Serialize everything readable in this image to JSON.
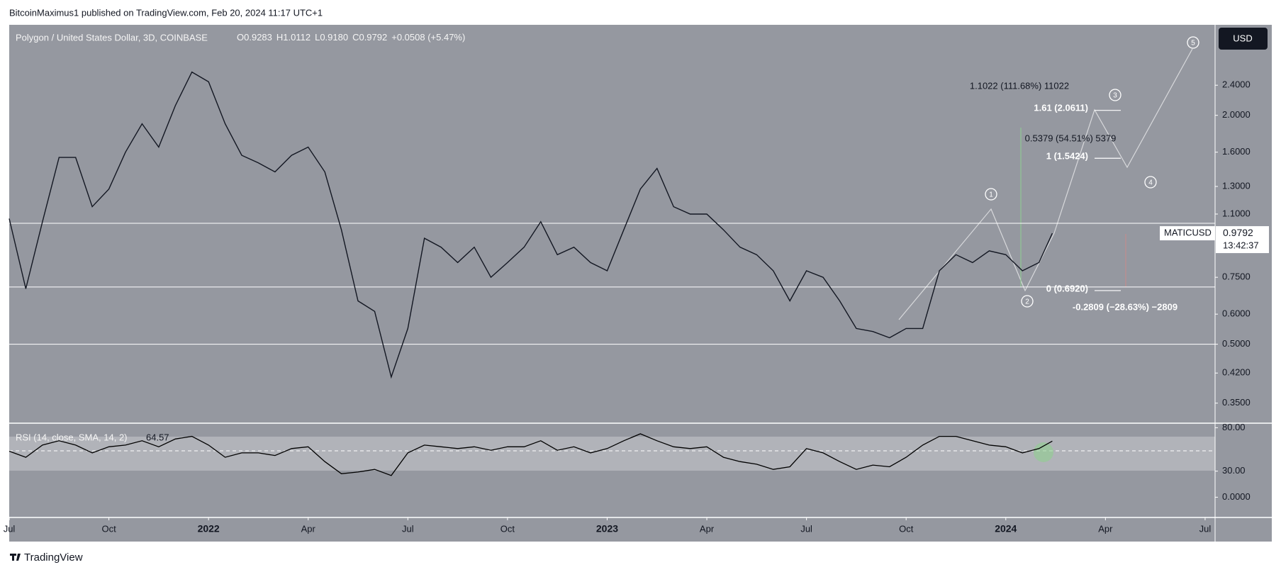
{
  "header": {
    "publisher": "BitcoinMaximus1 published on TradingView.com, Feb 20, 2024 11:17 UTC+1",
    "footer": "TradingView"
  },
  "chart_data": [
    {
      "type": "line",
      "title": "Polygon / United States Dollar, 3D, COINBASE",
      "ohlc": [
        "O",
        "0.9283",
        "H",
        "1.0112",
        "L",
        "0.9180",
        "C",
        "0.9792",
        "+0.0508 (+5.47%)"
      ],
      "currency": "USD",
      "countdown": "13:42:37",
      "log_scale": true,
      "x": [
        0,
        0.5,
        1,
        1.5,
        2,
        2.5,
        3,
        3.5,
        4,
        4.5,
        5,
        5.5,
        6,
        6.5,
        7,
        7.5,
        8,
        8.5,
        9,
        9.5,
        10,
        10.5,
        11,
        11.5,
        12,
        12.5,
        13,
        13.5,
        14,
        14.5,
        15,
        15.5,
        16,
        16.5,
        17,
        17.5,
        18,
        18.5,
        19,
        19.5,
        20,
        20.5,
        21,
        21.5,
        22,
        22.5,
        23,
        23.5,
        24,
        24.5,
        25,
        25.5,
        26,
        26.5,
        27,
        27.5,
        28,
        28.5,
        29,
        29.5,
        30,
        30.5,
        31,
        31.4
      ],
      "series": [
        {
          "name": "MATICUSD",
          "color": "#131722",
          "values": [
            1.07,
            0.7,
            1.05,
            1.55,
            1.55,
            1.15,
            1.28,
            1.6,
            1.9,
            1.65,
            2.12,
            2.6,
            2.45,
            1.9,
            1.57,
            1.5,
            1.42,
            1.57,
            1.65,
            1.42,
            1.0,
            0.65,
            0.61,
            0.41,
            0.55,
            0.95,
            0.9,
            0.82,
            0.9,
            0.75,
            0.82,
            0.9,
            1.05,
            0.86,
            0.9,
            0.82,
            0.78,
            1.0,
            1.28,
            1.45,
            1.15,
            1.1,
            1.1,
            1.0,
            0.9,
            0.86,
            0.78,
            0.65,
            0.78,
            0.75,
            0.65,
            0.55,
            0.54,
            0.52,
            0.55,
            0.55,
            0.78,
            0.86,
            0.82,
            0.88,
            0.86,
            0.78,
            0.82,
            0.9792
          ]
        }
      ],
      "xlim": [
        0,
        36.3
      ],
      "xticks": [
        {
          "value": 0,
          "label": "Jul"
        },
        {
          "value": 3,
          "label": "Oct"
        },
        {
          "value": 6,
          "label": "2022"
        },
        {
          "value": 9,
          "label": "Apr"
        },
        {
          "value": 12,
          "label": "Jul"
        },
        {
          "value": 15,
          "label": "Oct"
        },
        {
          "value": 18,
          "label": "2023"
        },
        {
          "value": 21,
          "label": "Apr"
        },
        {
          "value": 24,
          "label": "Jul"
        },
        {
          "value": 27,
          "label": "Oct"
        },
        {
          "value": 30,
          "label": "2024"
        },
        {
          "value": 33,
          "label": "Apr"
        },
        {
          "value": 36,
          "label": "Jul"
        }
      ],
      "ylim": [
        0.31,
        3.46
      ],
      "yticks": [
        {
          "value": 2.4,
          "label": "2.4000"
        },
        {
          "value": 2.0,
          "label": "2.0000"
        },
        {
          "value": 1.6,
          "label": "1.6000"
        },
        {
          "value": 1.3,
          "label": "1.3000"
        },
        {
          "value": 1.1,
          "label": "1.1000"
        },
        {
          "value": 0.75,
          "label": "0.7500"
        },
        {
          "value": 0.6,
          "label": "0.6000"
        },
        {
          "value": 0.5,
          "label": "0.5000"
        },
        {
          "value": 0.42,
          "label": "0.4200"
        },
        {
          "value": 0.35,
          "label": "0.3500"
        }
      ],
      "levels": [
        1.04,
        0.707,
        0.5
      ],
      "fib_levels": [
        2.0611,
        1.5424,
        0.692
      ],
      "annotations": [
        "1.1022 (111.68%) 11022",
        "1.61 (2.0611)",
        "0.5379 (54.51%) 5379",
        "1 (1.5424)",
        "0 (0.6920)",
        "-0.2809 (−28.63%) −2809"
      ],
      "wave_labels": [
        "1",
        "2",
        "3",
        "4",
        "5"
      ]
    },
    {
      "type": "line",
      "title": "RSI (14, close, SMA, 14, 2)",
      "x": [
        0,
        0.5,
        1,
        1.5,
        2,
        2.5,
        3,
        3.5,
        4,
        4.5,
        5,
        5.5,
        6,
        6.5,
        7,
        7.5,
        8,
        8.5,
        9,
        9.5,
        10,
        10.5,
        11,
        11.5,
        12,
        12.5,
        13,
        13.5,
        14,
        14.5,
        15,
        15.5,
        16,
        16.5,
        17,
        17.5,
        18,
        18.5,
        19,
        19.5,
        20,
        20.5,
        21,
        21.5,
        22,
        22.5,
        23,
        23.5,
        24,
        24.5,
        25,
        25.5,
        26,
        26.5,
        27,
        27.5,
        28,
        28.5,
        29,
        29.5,
        30,
        30.5,
        31,
        31.4
      ],
      "series": [
        {
          "color": "#000000",
          "values": [
            53,
            46,
            60,
            65,
            60,
            51,
            58,
            60,
            65,
            58,
            67,
            70,
            60,
            46,
            51,
            51,
            48,
            56,
            58,
            41,
            27,
            29,
            32,
            25,
            51,
            60,
            58,
            56,
            58,
            54,
            58,
            58,
            65,
            54,
            58,
            51,
            56,
            65,
            73,
            65,
            58,
            56,
            58,
            46,
            41,
            38,
            32,
            35,
            56,
            51,
            41,
            32,
            37,
            35,
            46,
            60,
            70,
            70,
            65,
            60,
            58,
            51,
            56,
            64.57
          ]
        }
      ],
      "xlim": [
        0,
        36.3
      ],
      "ylim": [
        -23.3,
        85.2
      ],
      "yticks": [
        {
          "value": 80,
          "label": "80.00"
        },
        {
          "value": 30,
          "label": "30.00"
        },
        {
          "value": 0,
          "label": "0.0000"
        }
      ]
    }
  ]
}
